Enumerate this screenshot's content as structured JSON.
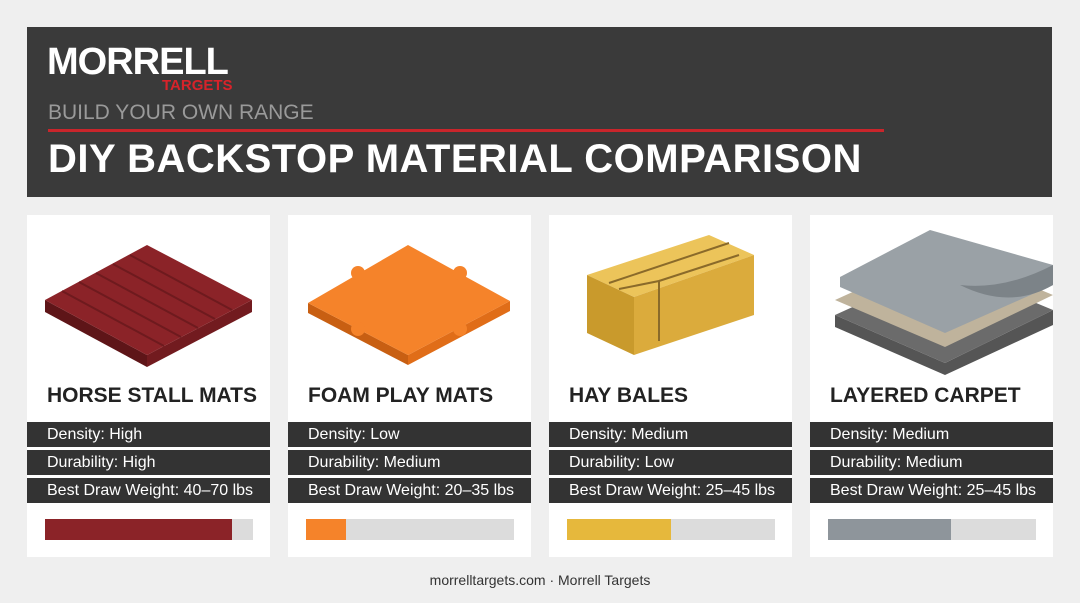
{
  "header": {
    "logo": {
      "word": "MORRELL",
      "sub": "TARGETS"
    },
    "kicker": "BUILD YOUR OWN RANGE",
    "title": "DIY BACKSTOP MATERIAL COMPARISON"
  },
  "rating_scale": {
    "xlim": [
      0,
      100
    ]
  },
  "cards": [
    {
      "name": "HORSE STALL MATS",
      "rows": [
        "Density: High",
        "Durability: High",
        "Best Draw Weight: 40–70 lbs"
      ],
      "rating": 90,
      "color": "#8b2328"
    },
    {
      "name": "FOAM PLAY MATS",
      "rows": [
        "Density: Low",
        "Durability: Medium",
        "Best Draw Weight: 20–35 lbs"
      ],
      "rating": 19,
      "color": "#f5832a"
    },
    {
      "name": "HAY BALES",
      "rows": [
        "Density: Medium",
        "Durability: Low",
        "Best Draw Weight: 25–45 lbs"
      ],
      "rating": 50,
      "color": "#e6b83c"
    },
    {
      "name": "LAYERED CARPET",
      "rows": [
        "Density: Medium",
        "Durability: Medium",
        "Best Draw Weight: 25–45 lbs"
      ],
      "rating": 59,
      "color": "#8e959b"
    }
  ],
  "footer": "morrelltargets.com · Morrell Targets"
}
